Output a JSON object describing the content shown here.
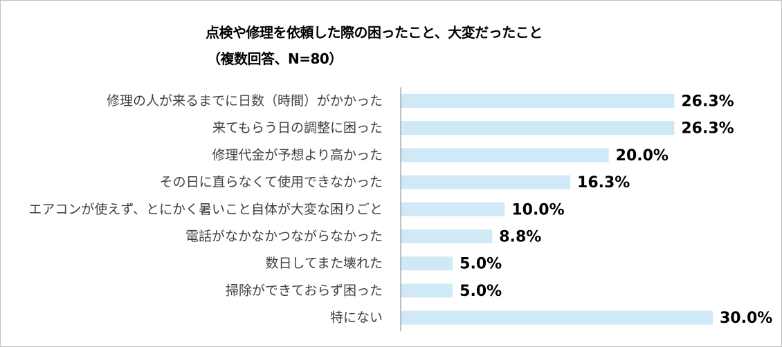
{
  "chart_data": {
    "type": "bar",
    "orientation": "horizontal",
    "title": "点検や修理を依頼した際の困ったこと、大変だったこと",
    "subtitle": "（複数回答、N=80）",
    "categories": [
      "修理の人が来るまでに日数（時間）がかかった",
      "来てもらう日の調整に困った",
      "修理代金が予想より高かった",
      "その日に直らなくて使用できなかった",
      "エアコンが使えず、とにかく暑いこと自体が大変な困りごと",
      "電話がなかなかつながらなかった",
      "数日してまた壊れた",
      "掃除ができておらず困った",
      "特にない"
    ],
    "values": [
      26.3,
      26.3,
      20.0,
      16.3,
      10.0,
      8.8,
      5.0,
      5.0,
      30.0
    ],
    "value_labels": [
      "26.3%",
      "26.3%",
      "20.0%",
      "16.3%",
      "10.0%",
      "8.8%",
      "5.0%",
      "5.0%",
      "30.0%"
    ],
    "xlim": [
      0,
      30
    ],
    "bar_color": "#cfe9f7",
    "axis_color": "#808080",
    "grid": false,
    "legend": "none"
  }
}
